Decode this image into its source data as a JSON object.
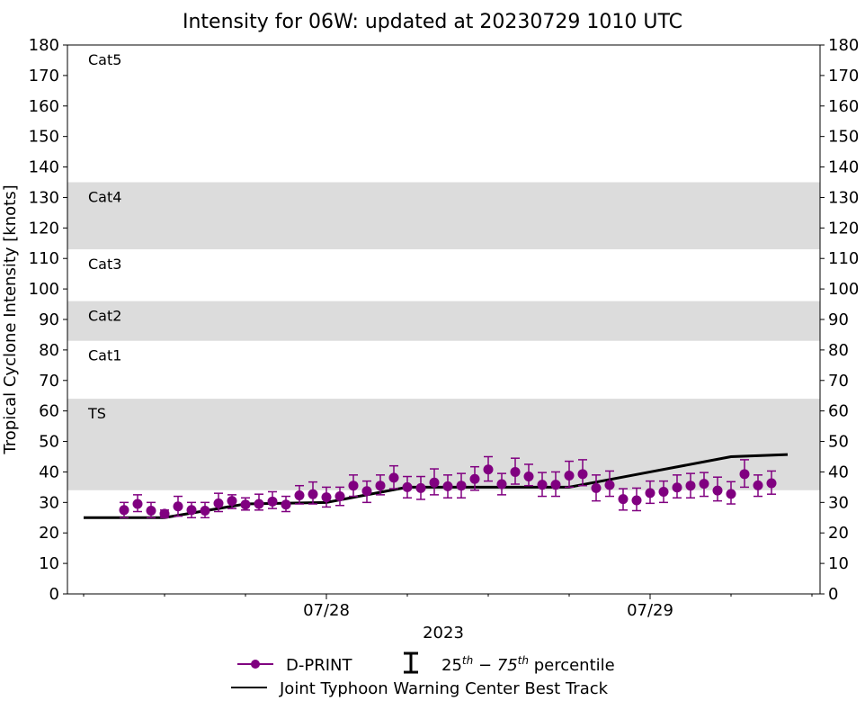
{
  "chart_data": {
    "type": "line",
    "title": "Intensity for 06W: updated at 20230729 1010 UTC",
    "xlabel": "2023",
    "ylabel": "Tropical Cyclone Intensity [knots]",
    "x_units": "hours since 2023-07-27 00 UTC",
    "xlim": [
      4.8,
      60.6
    ],
    "ylim": [
      0,
      180
    ],
    "yticks": [
      0,
      10,
      20,
      30,
      40,
      50,
      60,
      70,
      80,
      90,
      100,
      110,
      120,
      130,
      140,
      150,
      160,
      170,
      180
    ],
    "xticks_major": [
      {
        "x": 24,
        "label": "07/28"
      },
      {
        "x": 48,
        "label": "07/29"
      }
    ],
    "xticks_minor": [
      6,
      12,
      18,
      30,
      36,
      42,
      54,
      60
    ],
    "bands": [
      {
        "label": "TS",
        "from": 34,
        "to": 64,
        "shaded": true
      },
      {
        "label": "Cat1",
        "from": 64,
        "to": 83,
        "shaded": false
      },
      {
        "label": "Cat2",
        "from": 83,
        "to": 96,
        "shaded": true
      },
      {
        "label": "Cat3",
        "from": 96,
        "to": 113,
        "shaded": false
      },
      {
        "label": "Cat4",
        "from": 113,
        "to": 135,
        "shaded": true
      },
      {
        "label": "Cat5",
        "from": 135,
        "to": 180,
        "shaded": false
      }
    ],
    "series": [
      {
        "name": "D-PRINT",
        "color": "#800080",
        "x": [
          9,
          10,
          11,
          12,
          13,
          14,
          15,
          16,
          17,
          18,
          19,
          20,
          21,
          22,
          23,
          24,
          25,
          26,
          27,
          28,
          29,
          30,
          31,
          32,
          33,
          34,
          35,
          36,
          37,
          38,
          39,
          40,
          41,
          42,
          43,
          44,
          45,
          46,
          47,
          48,
          49,
          50,
          51,
          52,
          53,
          54,
          55,
          56,
          57
        ],
        "values": [
          27.5,
          29.5,
          27.3,
          26.3,
          28.7,
          27.5,
          27.3,
          29.7,
          30.5,
          29.3,
          29.5,
          30.3,
          29.3,
          32.3,
          32.7,
          31.7,
          32.0,
          35.5,
          33.7,
          35.5,
          38.1,
          35.0,
          34.7,
          36.5,
          35.3,
          35.5,
          37.7,
          40.8,
          36.0,
          40.0,
          38.5,
          35.8,
          35.8,
          38.8,
          39.3,
          34.7,
          35.7,
          31.1,
          30.7,
          33.1,
          33.5,
          34.9,
          35.5,
          36.1,
          33.9,
          32.8,
          39.3,
          35.6,
          36.3
        ],
        "p25": [
          25,
          27,
          25,
          25,
          25.5,
          25,
          25,
          27,
          28,
          27.5,
          27.5,
          28,
          27,
          29.5,
          29.5,
          28.5,
          29,
          32,
          30,
          32.5,
          34.5,
          31.5,
          31,
          32.5,
          31.5,
          31.5,
          34,
          37,
          32.5,
          36,
          35.5,
          32,
          32,
          35,
          35.5,
          30.5,
          32,
          27.5,
          27.3,
          29.7,
          30,
          31.5,
          31.5,
          32,
          30.5,
          29.5,
          35,
          32,
          32.7
        ],
        "p75": [
          30,
          32.5,
          30,
          27.5,
          32,
          30,
          30,
          33,
          32.5,
          31.5,
          32.7,
          33.5,
          32,
          35.5,
          36.7,
          35,
          35,
          39,
          37,
          39,
          42,
          38.5,
          38.5,
          41,
          39,
          39.5,
          41.7,
          45,
          39.5,
          44.5,
          42.5,
          39.8,
          40,
          43.5,
          44,
          39,
          40.3,
          34.5,
          34.7,
          37,
          37,
          39,
          39.5,
          39.8,
          38.3,
          36.8,
          44,
          39,
          40.3
        ]
      },
      {
        "name": "Joint Typhoon Warning Center Best Track",
        "color": "#000000",
        "x": [
          6,
          12,
          18,
          24,
          30,
          36,
          42,
          48,
          54,
          58.2
        ],
        "values": [
          25,
          25,
          29.5,
          30,
          35,
          35,
          35,
          40,
          45,
          45.7
        ]
      }
    ],
    "legend": {
      "placement": "bottom-center",
      "entries": [
        "D-PRINT",
        "25th-75th percentile",
        "Joint Typhoon Warning Center Best Track"
      ],
      "percentile_base1": "25",
      "percentile_sup1": "th",
      "percentile_dash": " − 75",
      "percentile_sup2": "th",
      "percentile_word": " percentile"
    },
    "band_shade_color": "#dcdcdc",
    "grid": false
  }
}
